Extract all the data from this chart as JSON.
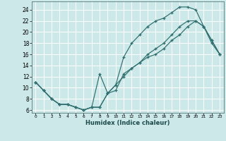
{
  "xlabel": "Humidex (Indice chaleur)",
  "xlim": [
    -0.5,
    23.5
  ],
  "ylim": [
    5.5,
    25.5
  ],
  "xticks": [
    0,
    1,
    2,
    3,
    4,
    5,
    6,
    7,
    8,
    9,
    10,
    11,
    12,
    13,
    14,
    15,
    16,
    17,
    18,
    19,
    20,
    21,
    22,
    23
  ],
  "yticks": [
    6,
    8,
    10,
    12,
    14,
    16,
    18,
    20,
    22,
    24
  ],
  "bg_color": "#cce8e8",
  "grid_color": "#ffffff",
  "line_color": "#2e6e6e",
  "line1_x": [
    0,
    1,
    2,
    3,
    4,
    5,
    6,
    7,
    8,
    9,
    10,
    11,
    12,
    13,
    14,
    15,
    16,
    17,
    18,
    19,
    20,
    21,
    22,
    23
  ],
  "line1_y": [
    11,
    9.5,
    8,
    7,
    7,
    6.5,
    6,
    6.5,
    6.5,
    9,
    10.5,
    15.5,
    18,
    19.5,
    21,
    22,
    22.5,
    23.5,
    24.5,
    24.5,
    24,
    21,
    18,
    16
  ],
  "line2_x": [
    0,
    1,
    2,
    3,
    4,
    5,
    6,
    7,
    8,
    9,
    10,
    11,
    12,
    13,
    14,
    15,
    16,
    17,
    18,
    19,
    20,
    21,
    22,
    23
  ],
  "line2_y": [
    11,
    9.5,
    8,
    7,
    7,
    6.5,
    6,
    6.5,
    12.5,
    9,
    9.5,
    12.5,
    13.5,
    14.5,
    15.5,
    16,
    17,
    18.5,
    19.5,
    21,
    22,
    21,
    18.5,
    16
  ],
  "line3_x": [
    0,
    1,
    2,
    3,
    4,
    5,
    6,
    7,
    8,
    9,
    10,
    11,
    12,
    13,
    14,
    15,
    16,
    17,
    18,
    19,
    20,
    21,
    22,
    23
  ],
  "line3_y": [
    11,
    9.5,
    8,
    7,
    7,
    6.5,
    6,
    6.5,
    6.5,
    9,
    10.5,
    12,
    13.5,
    14.5,
    16,
    17,
    18,
    19.5,
    21,
    22,
    22,
    21,
    18.5,
    16
  ]
}
